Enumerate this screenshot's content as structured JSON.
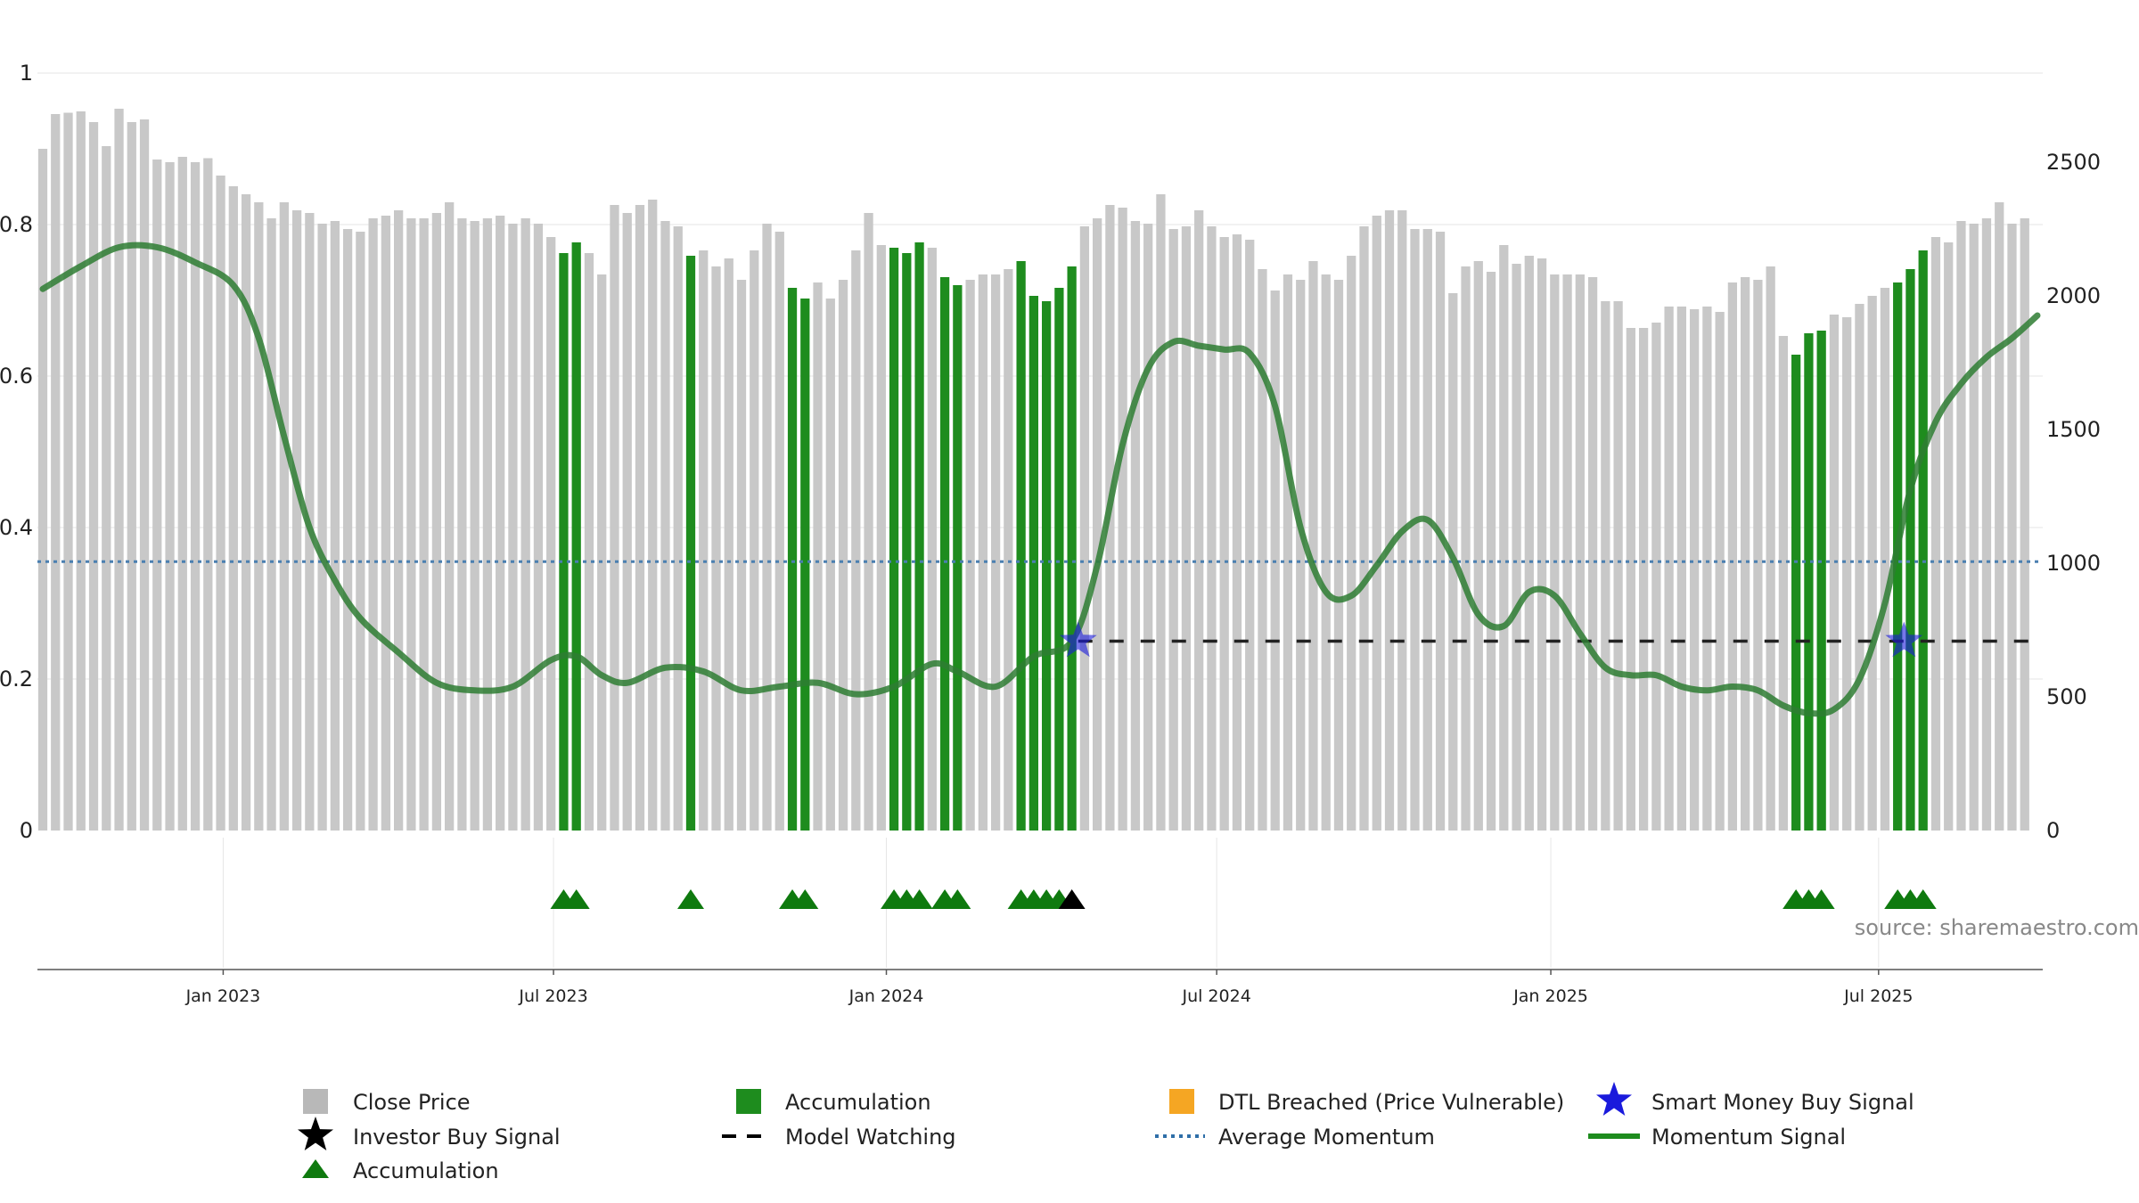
{
  "chart_data": {
    "type": "bar",
    "title": "",
    "source": "source: sharemaestro.com",
    "left_axis": {
      "range": [
        0,
        1
      ],
      "ticks": [
        "0",
        "0.2",
        "0.4",
        "0.6",
        "0.8",
        "1"
      ],
      "tick_values": [
        0,
        0.2,
        0.4,
        0.6,
        0.8,
        1
      ]
    },
    "right_axis": {
      "range": [
        0,
        2800
      ],
      "ticks": [
        "0",
        "500",
        "1000",
        "1500",
        "2000",
        "2500"
      ],
      "tick_values": [
        0,
        500,
        1000,
        1500,
        2000,
        2500
      ]
    },
    "x_axis": {
      "range_weeks": [
        0,
        157
      ],
      "ticks": [
        {
          "label": "Jan 2023",
          "week": 14.2
        },
        {
          "label": "Jul 2023",
          "week": 40.2
        },
        {
          "label": "Jan 2024",
          "week": 66.4
        },
        {
          "label": "Jul 2024",
          "week": 92.4
        },
        {
          "label": "Jan 2025",
          "week": 118.7
        },
        {
          "label": "Jul 2025",
          "week": 144.5
        }
      ]
    },
    "close_price": [
      2550,
      2680,
      2685,
      2690,
      2650,
      2560,
      2700,
      2650,
      2660,
      2510,
      2500,
      2520,
      2500,
      2515,
      2450,
      2410,
      2380,
      2350,
      2290,
      2350,
      2320,
      2310,
      2270,
      2280,
      2250,
      2240,
      2290,
      2300,
      2320,
      2290,
      2290,
      2310,
      2350,
      2290,
      2280,
      2290,
      2300,
      2270,
      2290,
      2270,
      2220,
      2160,
      2200,
      2160,
      2080,
      2340,
      2310,
      2340,
      2360,
      2280,
      2260,
      2150,
      2170,
      2110,
      2140,
      2060,
      2170,
      2270,
      2240,
      2030,
      1990,
      2050,
      1990,
      2060,
      2170,
      2310,
      2190,
      2180,
      2160,
      2200,
      2180,
      2070,
      2040,
      2060,
      2080,
      2080,
      2100,
      2130,
      2000,
      1980,
      2030,
      2110,
      2260,
      2290,
      2340,
      2330,
      2280,
      2270,
      2380,
      2250,
      2260,
      2320,
      2260,
      2220,
      2230,
      2210,
      2100,
      2020,
      2080,
      2060,
      2130,
      2080,
      2060,
      2150,
      2260,
      2300,
      2320,
      2320,
      2250,
      2250,
      2240,
      2010,
      2110,
      2130,
      2090,
      2190,
      2120,
      2150,
      2140,
      2080,
      2080,
      2080,
      2070,
      1980,
      1980,
      1880,
      1880,
      1900,
      1960,
      1960,
      1950,
      1960,
      1940,
      2050,
      2070,
      2060,
      2110,
      1850,
      1780,
      1860,
      1870,
      1930,
      1920,
      1970,
      2000,
      2030,
      2050,
      2100,
      2170,
      2220,
      2200,
      2280,
      2270,
      2290,
      2350,
      2270,
      2290
    ],
    "accumulation_weeks": [
      41,
      42,
      51,
      59,
      60,
      67,
      68,
      69,
      71,
      72,
      77,
      78,
      79,
      80,
      81,
      138,
      139,
      140,
      146,
      147,
      148
    ],
    "accumulation_markers_weeks": [
      41,
      42,
      51,
      59,
      60,
      67,
      68,
      69,
      71,
      72,
      77,
      78,
      79,
      80,
      138,
      139,
      140,
      146,
      147,
      148
    ],
    "investor_buy_markers_weeks": [
      81
    ],
    "smart_money_buy_signals": [
      {
        "week": 81.5,
        "momentum": 0.25
      },
      {
        "week": 146.5,
        "momentum": 0.25
      }
    ],
    "model_watching": {
      "from_week": 81.5,
      "to_week": 156.5,
      "level": 0.25
    },
    "average_momentum": 0.355,
    "momentum_signal": {
      "weeks": [
        0,
        3,
        6,
        9,
        12,
        15,
        17,
        19,
        21,
        23,
        25,
        28,
        31,
        34,
        37,
        40,
        42,
        44,
        46,
        49,
        52,
        55,
        58,
        61,
        64,
        67,
        70,
        72,
        75,
        78,
        81,
        83,
        85,
        87,
        89,
        91,
        93,
        95,
        97,
        99,
        101,
        103,
        105,
        107,
        109,
        111,
        113,
        115,
        117,
        119,
        121,
        123,
        125,
        127,
        129,
        131,
        133,
        135,
        137,
        139,
        141,
        143,
        145,
        147,
        149,
        151,
        153,
        155,
        157
      ],
      "values": [
        0.715,
        0.745,
        0.77,
        0.77,
        0.75,
        0.72,
        0.65,
        0.52,
        0.4,
        0.33,
        0.28,
        0.235,
        0.195,
        0.185,
        0.19,
        0.225,
        0.23,
        0.205,
        0.195,
        0.215,
        0.21,
        0.185,
        0.19,
        0.195,
        0.18,
        0.19,
        0.22,
        0.21,
        0.19,
        0.23,
        0.25,
        0.35,
        0.51,
        0.61,
        0.645,
        0.64,
        0.635,
        0.63,
        0.56,
        0.4,
        0.315,
        0.31,
        0.35,
        0.395,
        0.41,
        0.36,
        0.285,
        0.27,
        0.315,
        0.31,
        0.26,
        0.215,
        0.205,
        0.205,
        0.19,
        0.185,
        0.19,
        0.185,
        0.165,
        0.155,
        0.16,
        0.2,
        0.3,
        0.45,
        0.54,
        0.59,
        0.625,
        0.65,
        0.68
      ]
    }
  },
  "legend": {
    "close_price": "Close Price",
    "accumulation_bar": "Accumulation",
    "dtl_breached": "DTL Breached (Price Vulnerable)",
    "smart_money": "Smart Money Buy Signal",
    "investor_buy": "Investor Buy Signal",
    "model_watching": "Model Watching",
    "average_momentum": "Average Momentum",
    "momentum_signal": "Momentum Signal",
    "accumulation_marker": "Accumulation"
  },
  "colors": {
    "close_price": "#c8c8c8",
    "accumulation": "#1e8c1e",
    "dtl": "#f5a623",
    "smart_money": "#1a1adc",
    "momentum": "#2e7d32",
    "average": "#4a7fb0",
    "marker_green": "#0f7a0f",
    "axis": "#999999",
    "grid": "#e6e6e6"
  }
}
